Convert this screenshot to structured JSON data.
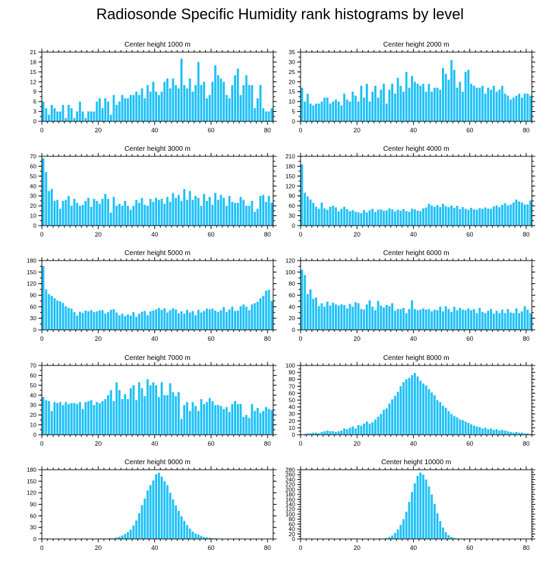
{
  "page_title": "Radiosonde Specific Humidity rank histograms by level",
  "colors": {
    "bar": "#1ec0f7",
    "axis": "#000000",
    "background": "#ffffff"
  },
  "chart_data": [
    {
      "type": "bar",
      "title": "Center height 1000 m",
      "xlim": [
        0,
        82
      ],
      "ylim": [
        0,
        21
      ],
      "xticks": [
        0,
        20,
        40,
        60,
        80
      ],
      "yticks": [
        0,
        3,
        6,
        9,
        12,
        15,
        18,
        21
      ],
      "values": [
        6,
        4,
        2,
        5,
        4,
        3,
        3,
        5,
        1,
        5,
        4,
        1,
        3,
        6,
        3,
        1,
        3,
        3,
        3,
        6,
        7,
        4,
        7,
        6,
        2,
        8,
        5,
        6,
        8,
        7,
        7,
        8,
        8,
        9,
        8,
        10,
        7,
        11,
        9,
        12,
        9,
        8,
        9,
        12,
        13,
        10,
        13,
        11,
        10,
        19,
        11,
        10,
        13,
        9,
        11,
        18,
        11,
        12,
        7,
        8,
        12,
        17,
        14,
        13,
        12,
        8,
        7,
        11,
        14,
        16,
        8,
        11,
        14,
        11,
        11,
        4,
        7,
        11,
        4,
        3,
        3,
        4
      ]
    },
    {
      "type": "bar",
      "title": "Center height 2000 m",
      "xlim": [
        0,
        82
      ],
      "ylim": [
        0,
        35
      ],
      "xticks": [
        0,
        20,
        40,
        60,
        80
      ],
      "yticks": [
        0,
        5,
        10,
        15,
        20,
        25,
        30,
        35
      ],
      "values": [
        17,
        10,
        14,
        9,
        8,
        9,
        9,
        10,
        12,
        12,
        9,
        10,
        11,
        10,
        8,
        14,
        11,
        10,
        15,
        13,
        10,
        18,
        12,
        19,
        10,
        15,
        18,
        12,
        16,
        19,
        9,
        16,
        19,
        14,
        22,
        18,
        15,
        25,
        17,
        23,
        20,
        19,
        18,
        19,
        15,
        19,
        15,
        17,
        17,
        16,
        27,
        24,
        21,
        31,
        26,
        17,
        20,
        15,
        25,
        26,
        19,
        18,
        17,
        17,
        18,
        14,
        17,
        16,
        18,
        15,
        16,
        18,
        14,
        13,
        11,
        12,
        13,
        14,
        12,
        14,
        14,
        13
      ]
    },
    {
      "type": "bar",
      "title": "Center height 3000 m",
      "xlim": [
        0,
        82
      ],
      "ylim": [
        0,
        70
      ],
      "xticks": [
        0,
        20,
        40,
        60,
        80
      ],
      "yticks": [
        0,
        10,
        20,
        30,
        40,
        50,
        60,
        70
      ],
      "values": [
        68,
        54,
        35,
        37,
        25,
        26,
        17,
        25,
        26,
        30,
        20,
        27,
        23,
        20,
        21,
        25,
        28,
        19,
        27,
        25,
        22,
        27,
        32,
        27,
        13,
        29,
        20,
        22,
        20,
        25,
        20,
        16,
        20,
        26,
        23,
        28,
        21,
        20,
        27,
        24,
        28,
        26,
        27,
        22,
        29,
        24,
        33,
        28,
        31,
        25,
        37,
        26,
        35,
        26,
        30,
        28,
        20,
        32,
        25,
        29,
        21,
        33,
        26,
        31,
        28,
        20,
        30,
        24,
        23,
        23,
        29,
        26,
        20,
        20,
        25,
        14,
        17,
        30,
        31,
        24,
        30,
        23
      ]
    },
    {
      "type": "bar",
      "title": "Center height 4000 m",
      "xlim": [
        0,
        82
      ],
      "ylim": [
        0,
        210
      ],
      "xticks": [
        0,
        20,
        40,
        60,
        80
      ],
      "yticks": [
        0,
        30,
        60,
        90,
        120,
        150,
        180,
        210
      ],
      "values": [
        186,
        100,
        88,
        79,
        69,
        57,
        51,
        70,
        52,
        48,
        57,
        60,
        55,
        43,
        51,
        57,
        50,
        44,
        47,
        42,
        40,
        38,
        47,
        40,
        47,
        51,
        41,
        48,
        49,
        45,
        46,
        52,
        49,
        43,
        48,
        45,
        50,
        44,
        42,
        51,
        49,
        45,
        44,
        52,
        55,
        66,
        61,
        57,
        62,
        56,
        66,
        59,
        56,
        61,
        54,
        60,
        50,
        56,
        51,
        48,
        54,
        49,
        48,
        53,
        51,
        55,
        51,
        51,
        58,
        61,
        56,
        63,
        68,
        61,
        64,
        70,
        79,
        73,
        70,
        64,
        64,
        76
      ]
    },
    {
      "type": "bar",
      "title": "Center height 5000 m",
      "xlim": [
        0,
        82
      ],
      "ylim": [
        0,
        180
      ],
      "xticks": [
        0,
        20,
        40,
        60,
        80
      ],
      "yticks": [
        0,
        30,
        60,
        90,
        120,
        150,
        180
      ],
      "values": [
        166,
        105,
        93,
        88,
        82,
        76,
        74,
        70,
        61,
        57,
        55,
        46,
        37,
        47,
        44,
        50,
        48,
        51,
        46,
        48,
        51,
        51,
        42,
        46,
        52,
        54,
        45,
        38,
        42,
        36,
        40,
        37,
        46,
        34,
        42,
        47,
        49,
        38,
        48,
        50,
        53,
        57,
        52,
        56,
        45,
        51,
        56,
        53,
        43,
        48,
        42,
        52,
        45,
        49,
        38,
        52,
        45,
        49,
        55,
        53,
        55,
        50,
        46,
        51,
        59,
        46,
        53,
        60,
        49,
        50,
        61,
        66,
        60,
        51,
        66,
        69,
        73,
        82,
        88,
        102,
        104,
        75
      ]
    },
    {
      "type": "bar",
      "title": "Center height 6000 m",
      "xlim": [
        0,
        82
      ],
      "ylim": [
        0,
        120
      ],
      "xticks": [
        0,
        20,
        40,
        60,
        80
      ],
      "yticks": [
        0,
        20,
        40,
        60,
        80,
        100,
        120
      ],
      "values": [
        104,
        95,
        62,
        70,
        54,
        56,
        41,
        46,
        40,
        49,
        42,
        47,
        44,
        42,
        44,
        43,
        37,
        45,
        40,
        48,
        46,
        36,
        35,
        44,
        51,
        40,
        34,
        50,
        42,
        39,
        43,
        41,
        46,
        33,
        36,
        36,
        38,
        29,
        36,
        51,
        36,
        34,
        35,
        37,
        35,
        36,
        32,
        35,
        34,
        40,
        32,
        41,
        36,
        31,
        40,
        34,
        38,
        35,
        34,
        37,
        34,
        36,
        29,
        38,
        31,
        29,
        33,
        36,
        28,
        33,
        29,
        35,
        29,
        36,
        30,
        29,
        37,
        29,
        32,
        41,
        35,
        29
      ]
    },
    {
      "type": "bar",
      "title": "Center height 7000 m",
      "xlim": [
        0,
        82
      ],
      "ylim": [
        0,
        70
      ],
      "xticks": [
        0,
        20,
        40,
        60,
        80
      ],
      "yticks": [
        0,
        10,
        20,
        30,
        40,
        50,
        60,
        70
      ],
      "values": [
        38,
        35,
        34,
        24,
        33,
        32,
        33,
        30,
        33,
        31,
        32,
        32,
        31,
        33,
        26,
        33,
        34,
        35,
        30,
        33,
        32,
        34,
        36,
        40,
        45,
        34,
        53,
        45,
        36,
        41,
        36,
        47,
        50,
        35,
        53,
        47,
        39,
        56,
        50,
        53,
        50,
        38,
        53,
        40,
        40,
        52,
        43,
        39,
        43,
        16,
        30,
        33,
        24,
        33,
        29,
        24,
        36,
        31,
        33,
        37,
        34,
        30,
        30,
        29,
        26,
        28,
        23,
        31,
        34,
        31,
        31,
        18,
        20,
        17,
        31,
        24,
        27,
        22,
        24,
        28,
        26,
        25
      ]
    },
    {
      "type": "bar",
      "title": "Center height 8000 m",
      "xlim": [
        0,
        82
      ],
      "ylim": [
        0,
        100
      ],
      "xticks": [
        0,
        20,
        40,
        60,
        80
      ],
      "yticks": [
        0,
        10,
        20,
        30,
        40,
        50,
        60,
        70,
        80,
        90,
        100
      ],
      "values": [
        0,
        1,
        2,
        2,
        3,
        3,
        2,
        4,
        5,
        6,
        5,
        5,
        4,
        5,
        6,
        9,
        8,
        10,
        12,
        9,
        14,
        13,
        16,
        19,
        16,
        18,
        22,
        26,
        30,
        36,
        38,
        45,
        51,
        56,
        62,
        70,
        76,
        80,
        82,
        86,
        89,
        84,
        78,
        74,
        71,
        66,
        61,
        57,
        50,
        47,
        42,
        39,
        34,
        30,
        27,
        25,
        22,
        21,
        19,
        17,
        15,
        13,
        12,
        11,
        9,
        10,
        8,
        9,
        7,
        8,
        6,
        7,
        6,
        5,
        4,
        3,
        4,
        3,
        3,
        2,
        2,
        1
      ]
    },
    {
      "type": "bar",
      "title": "Center height 9000 m",
      "xlim": [
        0,
        82
      ],
      "ylim": [
        0,
        180
      ],
      "xticks": [
        0,
        20,
        40,
        60,
        80
      ],
      "yticks": [
        0,
        30,
        60,
        90,
        120,
        150,
        180
      ],
      "values": [
        0,
        0,
        0,
        0,
        0,
        0,
        0,
        0,
        0,
        0,
        0,
        0,
        0,
        0,
        0,
        0,
        0,
        0,
        0,
        0,
        0,
        0,
        1,
        1,
        2,
        2,
        4,
        6,
        9,
        13,
        18,
        24,
        35,
        48,
        67,
        88,
        105,
        126,
        140,
        152,
        168,
        172,
        162,
        150,
        140,
        120,
        103,
        87,
        73,
        59,
        47,
        36,
        27,
        19,
        14,
        11,
        8,
        5,
        4,
        3,
        2,
        2,
        1,
        1,
        0,
        0,
        0,
        0,
        0,
        0,
        0,
        0,
        0,
        0,
        0,
        0,
        0,
        0,
        0,
        0,
        0,
        0
      ]
    },
    {
      "type": "bar",
      "title": "Center height 10000 m",
      "xlim": [
        0,
        82
      ],
      "ylim": [
        0,
        280
      ],
      "xticks": [
        0,
        20,
        40,
        60,
        80
      ],
      "yticks": [
        0,
        20,
        40,
        60,
        80,
        100,
        120,
        140,
        160,
        180,
        200,
        220,
        240,
        260,
        280
      ],
      "values": [
        0,
        0,
        0,
        0,
        0,
        0,
        0,
        0,
        0,
        0,
        0,
        0,
        0,
        0,
        0,
        0,
        0,
        0,
        0,
        0,
        0,
        0,
        0,
        0,
        0,
        0,
        0,
        1,
        1,
        2,
        4,
        8,
        14,
        24,
        38,
        57,
        80,
        110,
        150,
        190,
        225,
        255,
        268,
        260,
        240,
        212,
        180,
        142,
        104,
        72,
        46,
        27,
        15,
        8,
        4,
        2,
        1,
        1,
        0,
        0,
        0,
        0,
        0,
        0,
        0,
        0,
        0,
        0,
        0,
        0,
        0,
        0,
        0,
        0,
        0,
        0,
        0,
        0,
        0,
        0,
        0,
        0
      ]
    }
  ]
}
